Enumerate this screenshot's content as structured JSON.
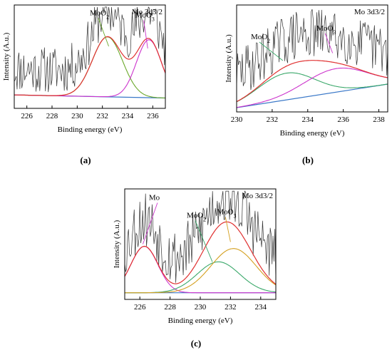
{
  "chart_data": [
    {
      "panel_label": "(a)",
      "type": "line",
      "title": "Mo 3d3/2",
      "xlabel": "Binding energy (eV)",
      "ylabel": "Intensity (A.u.)",
      "xlim": [
        225,
        237
      ],
      "x_ticks": [
        226,
        228,
        230,
        232,
        234,
        236
      ],
      "x_tick_labels": [
        "226",
        "228",
        "230",
        "232",
        "234",
        "236"
      ],
      "ylim": [
        0,
        1
      ],
      "peaks": [
        {
          "label": "MoO₂",
          "name_text": "MoO",
          "name_sub": "2",
          "color": "#6aa82a",
          "center": 232.4,
          "height": 0.58,
          "width": 1.2
        },
        {
          "label": "MoO₃",
          "name_text": "MoO",
          "name_sub": "3",
          "color": "#cc33cc",
          "center": 235.7,
          "height": 0.56,
          "width": 1.0
        }
      ],
      "annotations": [
        {
          "text": "MoO",
          "sub": "2",
          "x": 231.0,
          "y": 0.9,
          "color": "#6aa82a",
          "target_x": 232.5,
          "target_y": 0.6
        },
        {
          "text": "MoO",
          "sub": "3",
          "x": 234.6,
          "y": 0.88,
          "color": "#cc33cc",
          "target_x": 235.6,
          "target_y": 0.58
        }
      ],
      "background": {
        "color": "#3a78c8",
        "y_start": 0.13,
        "y_end": 0.1
      },
      "envelope_color": "#e03030",
      "raw_color": "#333333",
      "noise": 0.23,
      "seed": 11
    },
    {
      "panel_label": "(b)",
      "type": "line",
      "title": "Mo 3d3/2",
      "xlabel": "Binding energy (eV)",
      "ylabel": "Intensity (A.u.)",
      "xlim": [
        230,
        238.5
      ],
      "x_ticks": [
        230,
        232,
        234,
        236,
        238
      ],
      "x_tick_labels": [
        "230",
        "232",
        "234",
        "236",
        "238"
      ],
      "ylim": [
        0,
        1
      ],
      "peaks": [
        {
          "label": "MoO₂",
          "name_text": "MoO",
          "name_sub": "2",
          "color": "#3aa86a",
          "center": 232.8,
          "height": 0.25,
          "width": 1.6
        },
        {
          "label": "MoO₃",
          "name_text": "MoO",
          "name_sub": "3",
          "color": "#cc33cc",
          "center": 235.6,
          "height": 0.22,
          "width": 1.8
        }
      ],
      "annotations": [
        {
          "text": "MoO",
          "sub": "2",
          "x": 230.8,
          "y": 0.68,
          "color": "#3aa86a",
          "target_x": 232.6,
          "target_y": 0.48
        },
        {
          "text": "MoO",
          "sub": "3",
          "x": 234.5,
          "y": 0.76,
          "color": "#cc33cc",
          "target_x": 235.4,
          "target_y": 0.55
        }
      ],
      "background": {
        "color": "#3a78c8",
        "y_start": 0.04,
        "y_end": 0.26
      },
      "envelope_color": "#e03030",
      "raw_color": "#333333",
      "noise": 0.24,
      "seed": 29
    },
    {
      "panel_label": "(c)",
      "type": "line",
      "title": "Mo 3d3/2",
      "xlabel": "Binding energy (eV)",
      "ylabel": "Intensity (A.u.)",
      "xlim": [
        225,
        235
      ],
      "x_ticks": [
        226,
        228,
        230,
        232,
        234
      ],
      "x_tick_labels": [
        "226",
        "228",
        "230",
        "232",
        "234"
      ],
      "ylim": [
        0,
        1
      ],
      "peaks": [
        {
          "label": "Mo",
          "name_text": "Mo",
          "name_sub": "",
          "color": "#cc33cc",
          "center": 226.3,
          "height": 0.42,
          "width": 0.9
        },
        {
          "label": "MoO₂",
          "name_text": "MoO",
          "name_sub": "2",
          "color": "#3aa86a",
          "center": 231.2,
          "height": 0.28,
          "width": 1.4
        },
        {
          "label": "MoO₃",
          "name_text": "MoO",
          "name_sub": "3",
          "color": "#d4a020",
          "center": 232.2,
          "height": 0.4,
          "width": 1.5
        }
      ],
      "annotations": [
        {
          "text": "Mo",
          "sub": "",
          "x": 226.6,
          "y": 0.9,
          "color": "#cc33cc",
          "target_x": 226.2,
          "target_y": 0.5
        },
        {
          "text": "MoO",
          "sub": "2",
          "x": 229.1,
          "y": 0.74,
          "color": "#3aa86a",
          "target_x": 230.8,
          "target_y": 0.34
        },
        {
          "text": "MoO",
          "sub": "3",
          "x": 231.1,
          "y": 0.77,
          "color": "#d4a020",
          "target_x": 232.0,
          "target_y": 0.52
        }
      ],
      "background": {
        "color": "#3a78c8",
        "y_start": 0.06,
        "y_end": 0.06
      },
      "envelope_color": "#e03030",
      "raw_color": "#333333",
      "noise": 0.27,
      "seed": 53
    }
  ]
}
